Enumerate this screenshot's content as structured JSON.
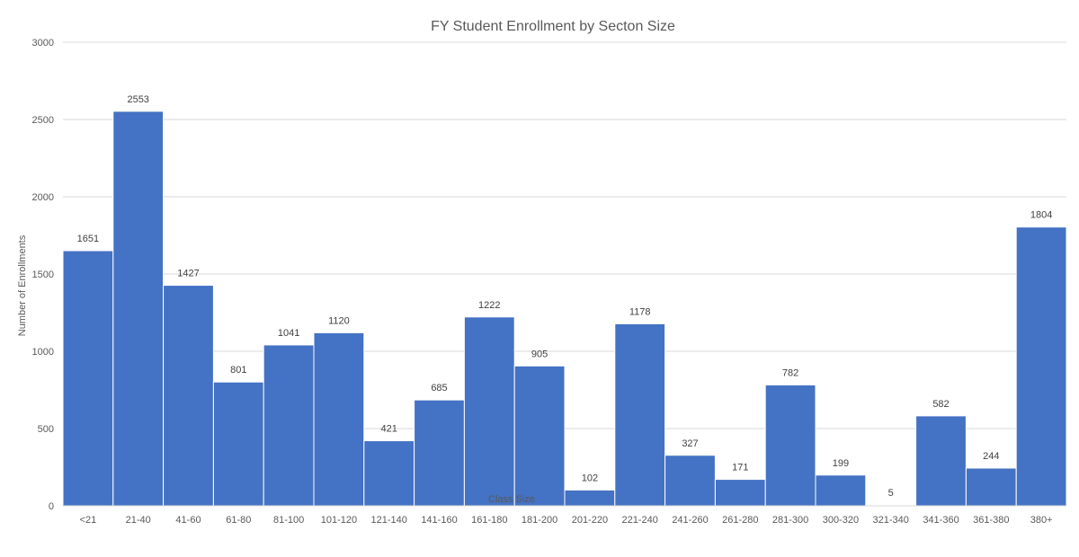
{
  "chart_data": {
    "type": "bar",
    "title": "FY Student Enrollment by Secton Size",
    "xlabel": "Class Size",
    "ylabel": "Number of Enrollments",
    "categories": [
      "<21",
      "21-40",
      "41-60",
      "61-80",
      "81-100",
      "101-120",
      "121-140",
      "141-160",
      "161-180",
      "181-200",
      "201-220",
      "221-240",
      "241-260",
      "261-280",
      "281-300",
      "300-320",
      "321-340",
      "341-360",
      "361-380",
      "380+"
    ],
    "values": [
      1651,
      2553,
      1427,
      801,
      1041,
      1120,
      421,
      685,
      1222,
      905,
      102,
      1178,
      327,
      171,
      782,
      199,
      5,
      582,
      244,
      1804
    ],
    "ylim": [
      0,
      3000
    ],
    "yticks": [
      0,
      500,
      1000,
      1500,
      2000,
      2500,
      3000
    ],
    "grid": true,
    "legend": "none",
    "bar_color": "#4472c4",
    "data_labels": true
  }
}
